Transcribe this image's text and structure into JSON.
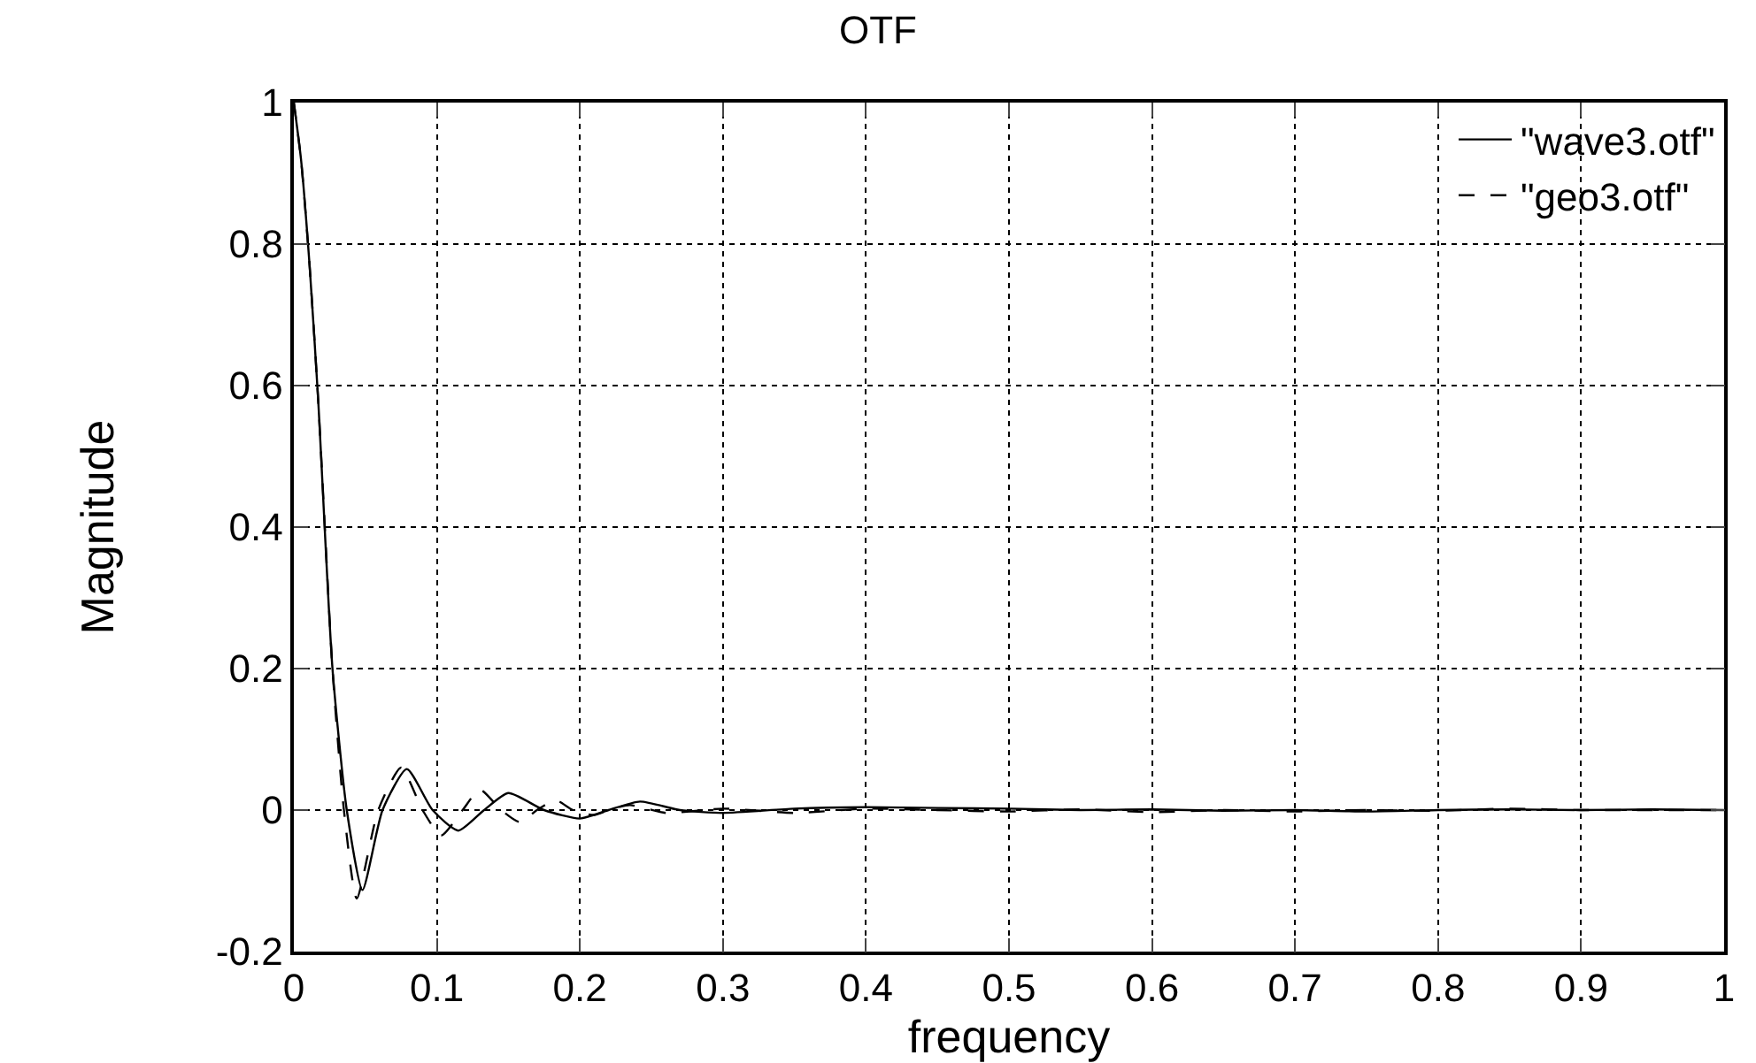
{
  "chart_data": {
    "type": "line",
    "title": "OTF",
    "xlabel": "frequency",
    "ylabel": "Magnitude",
    "xlim": [
      0,
      1
    ],
    "xticks": [
      0,
      0.1,
      0.2,
      0.3,
      0.4,
      0.5,
      0.6,
      0.7,
      0.8,
      0.9,
      1
    ],
    "ylim": [
      -0.2,
      1
    ],
    "yticks": [
      -0.2,
      0,
      0.2,
      0.4,
      0.6,
      0.8,
      1
    ],
    "grid": true,
    "legend": "top right",
    "marker": "none",
    "series": [
      {
        "name": "\"wave3.otf\"",
        "color": "#000000",
        "line_style": "solid",
        "x": [
          0,
          0.005,
          0.011,
          0.017,
          0.027,
          0.037,
          0.048,
          0.062,
          0.079,
          0.097,
          0.115,
          0.133,
          0.15,
          0.175,
          0.2,
          0.22,
          0.242,
          0.27,
          0.3,
          0.35,
          0.4,
          0.45,
          0.5,
          0.55,
          0.6,
          0.65,
          0.7,
          0.75,
          0.8,
          0.85,
          0.9,
          0.95,
          1
        ],
        "values": [
          1,
          0.92,
          0.77,
          0.58,
          0.2,
          0,
          -0.113,
          0,
          0.058,
          0,
          -0.029,
          0,
          0.024,
          0,
          -0.012,
          0,
          0.012,
          0,
          -0.004,
          0.002,
          0.004,
          0.003,
          0.002,
          0,
          0.001,
          -0.001,
          0,
          -0.002,
          0,
          0.001,
          0,
          0.001,
          0
        ]
      },
      {
        "name": "\"geo3.otf\"",
        "color": "#000000",
        "line_style": "dashed",
        "x": [
          0,
          0.005,
          0.011,
          0.017,
          0.027,
          0.035,
          0.044,
          0.059,
          0.075,
          0.09,
          0.103,
          0.118,
          0.13,
          0.145,
          0.158,
          0.17,
          0.183,
          0.195,
          0.21,
          0.22,
          0.235,
          0.26,
          0.3,
          0.35,
          0.4,
          0.45,
          0.5,
          0.55,
          0.6,
          0.65,
          0.7,
          0.75,
          0.8,
          0.85,
          0.9,
          0.95,
          1
        ],
        "values": [
          1,
          0.92,
          0.77,
          0.58,
          0.2,
          0,
          -0.125,
          0,
          0.06,
          0,
          -0.036,
          0,
          0.029,
          0,
          -0.017,
          0,
          0.014,
          0,
          -0.007,
          0,
          0.007,
          -0.004,
          0.002,
          -0.004,
          0.002,
          0,
          -0.002,
          0.001,
          -0.003,
          0,
          -0.002,
          0,
          -0.001,
          0.002,
          0,
          0,
          0
        ]
      }
    ]
  }
}
